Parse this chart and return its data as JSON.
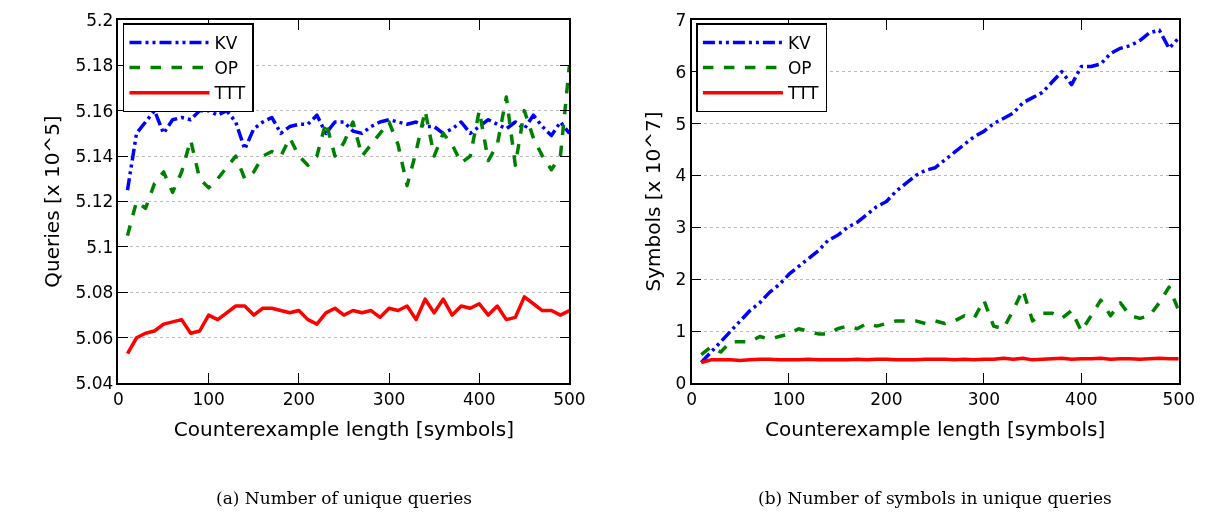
{
  "chart_data": [
    {
      "type": "line",
      "xlabel": "Counterexample length [symbols]",
      "ylabel": "Queries [x 10^5]",
      "annotations": [
        "(a) Number of unique queries"
      ],
      "x": [
        10,
        20,
        30,
        40,
        50,
        60,
        70,
        80,
        90,
        100,
        110,
        120,
        130,
        140,
        150,
        160,
        170,
        180,
        190,
        200,
        210,
        220,
        230,
        240,
        250,
        260,
        270,
        280,
        290,
        300,
        310,
        320,
        330,
        340,
        350,
        360,
        370,
        380,
        390,
        400,
        410,
        420,
        430,
        440,
        450,
        460,
        470,
        480,
        490,
        500
      ],
      "xlim": [
        0,
        500
      ],
      "xticks": [
        0,
        100,
        200,
        300,
        400,
        500
      ],
      "ylim": [
        5.04,
        5.2
      ],
      "yticks": [
        5.04,
        5.06,
        5.08,
        5.1,
        5.12,
        5.14,
        5.16,
        5.18,
        5.2
      ],
      "grid": "y",
      "legend": "top left",
      "marker": "none",
      "series": [
        {
          "name": "KV",
          "color": "#0000ff",
          "line_style": "dashdot",
          "values": [
            5.125,
            5.15,
            5.155,
            5.16,
            5.15,
            5.156,
            5.157,
            5.156,
            5.16,
            5.16,
            5.158,
            5.16,
            5.155,
            5.143,
            5.152,
            5.155,
            5.157,
            5.15,
            5.153,
            5.154,
            5.154,
            5.158,
            5.15,
            5.155,
            5.155,
            5.151,
            5.15,
            5.153,
            5.155,
            5.156,
            5.155,
            5.154,
            5.155,
            5.153,
            5.153,
            5.15,
            5.152,
            5.155,
            5.15,
            5.153,
            5.156,
            5.154,
            5.152,
            5.155,
            5.152,
            5.158,
            5.153,
            5.149,
            5.155,
            5.15
          ]
        },
        {
          "name": "OP",
          "color": "#008000",
          "line_style": "dashed",
          "values": [
            5.105,
            5.12,
            5.117,
            5.128,
            5.133,
            5.124,
            5.133,
            5.147,
            5.13,
            5.126,
            5.13,
            5.135,
            5.14,
            5.13,
            5.133,
            5.14,
            5.142,
            5.14,
            5.148,
            5.14,
            5.136,
            5.14,
            5.155,
            5.14,
            5.146,
            5.155,
            5.14,
            5.145,
            5.15,
            5.155,
            5.145,
            5.127,
            5.142,
            5.16,
            5.14,
            5.15,
            5.145,
            5.137,
            5.14,
            5.16,
            5.138,
            5.145,
            5.166,
            5.136,
            5.16,
            5.148,
            5.14,
            5.134,
            5.14,
            5.18
          ]
        },
        {
          "name": "TTT",
          "color": "#ff0000",
          "line_style": "solid",
          "values": [
            5.053,
            5.06,
            5.062,
            5.063,
            5.066,
            5.067,
            5.068,
            5.062,
            5.063,
            5.07,
            5.068,
            5.071,
            5.074,
            5.074,
            5.07,
            5.073,
            5.073,
            5.072,
            5.071,
            5.072,
            5.068,
            5.066,
            5.071,
            5.073,
            5.07,
            5.072,
            5.071,
            5.072,
            5.069,
            5.073,
            5.072,
            5.074,
            5.068,
            5.077,
            5.071,
            5.077,
            5.07,
            5.074,
            5.073,
            5.075,
            5.07,
            5.074,
            5.068,
            5.069,
            5.078,
            5.075,
            5.072,
            5.072,
            5.07,
            5.072
          ]
        }
      ]
    },
    {
      "type": "line",
      "xlabel": "Counterexample length [symbols]",
      "ylabel": "Symbols [x 10^7]",
      "annotations": [
        "(b) Number of symbols in unique queries"
      ],
      "x": [
        10,
        20,
        30,
        40,
        50,
        60,
        70,
        80,
        90,
        100,
        110,
        120,
        130,
        140,
        150,
        160,
        170,
        180,
        190,
        200,
        210,
        220,
        230,
        240,
        250,
        260,
        270,
        280,
        290,
        300,
        310,
        320,
        330,
        340,
        350,
        360,
        370,
        380,
        390,
        400,
        410,
        420,
        430,
        440,
        450,
        460,
        470,
        480,
        490,
        500
      ],
      "xlim": [
        0,
        500
      ],
      "xticks": [
        0,
        100,
        200,
        300,
        400,
        500
      ],
      "ylim": [
        0,
        7
      ],
      "yticks": [
        0,
        1,
        2,
        3,
        4,
        5,
        6,
        7
      ],
      "grid": "y",
      "legend": "top left",
      "marker": "none",
      "series": [
        {
          "name": "KV",
          "color": "#0000ff",
          "line_style": "dashdot",
          "values": [
            0.4,
            0.6,
            0.8,
            1.0,
            1.2,
            1.4,
            1.55,
            1.75,
            1.9,
            2.1,
            2.25,
            2.4,
            2.55,
            2.75,
            2.85,
            3.0,
            3.1,
            3.25,
            3.4,
            3.5,
            3.7,
            3.85,
            4.0,
            4.1,
            4.15,
            4.3,
            4.45,
            4.6,
            4.75,
            4.85,
            5.0,
            5.1,
            5.2,
            5.4,
            5.5,
            5.6,
            5.8,
            6.0,
            5.75,
            6.1,
            6.1,
            6.15,
            6.35,
            6.45,
            6.5,
            6.6,
            6.75,
            6.8,
            6.45,
            6.65
          ]
        },
        {
          "name": "OP",
          "color": "#008000",
          "line_style": "dashed",
          "values": [
            0.55,
            0.7,
            0.6,
            0.8,
            0.8,
            0.8,
            0.9,
            0.85,
            0.9,
            0.95,
            1.05,
            1.0,
            0.95,
            0.95,
            1.05,
            1.1,
            1.05,
            1.15,
            1.1,
            1.15,
            1.2,
            1.2,
            1.2,
            1.15,
            1.2,
            1.15,
            1.2,
            1.3,
            1.25,
            1.6,
            1.1,
            1.05,
            1.4,
            1.8,
            1.2,
            1.35,
            1.35,
            1.25,
            1.4,
            1.0,
            1.3,
            1.6,
            1.3,
            1.55,
            1.3,
            1.25,
            1.3,
            1.55,
            1.85,
            1.4
          ]
        },
        {
          "name": "TTT",
          "color": "#ff0000",
          "line_style": "solid",
          "values": [
            0.4,
            0.45,
            0.45,
            0.45,
            0.44,
            0.45,
            0.46,
            0.46,
            0.45,
            0.45,
            0.45,
            0.46,
            0.45,
            0.45,
            0.45,
            0.45,
            0.46,
            0.45,
            0.46,
            0.46,
            0.45,
            0.45,
            0.45,
            0.46,
            0.46,
            0.46,
            0.45,
            0.46,
            0.45,
            0.46,
            0.46,
            0.48,
            0.46,
            0.48,
            0.45,
            0.46,
            0.47,
            0.48,
            0.46,
            0.47,
            0.47,
            0.48,
            0.46,
            0.47,
            0.47,
            0.46,
            0.47,
            0.48,
            0.47,
            0.47
          ]
        }
      ]
    }
  ]
}
